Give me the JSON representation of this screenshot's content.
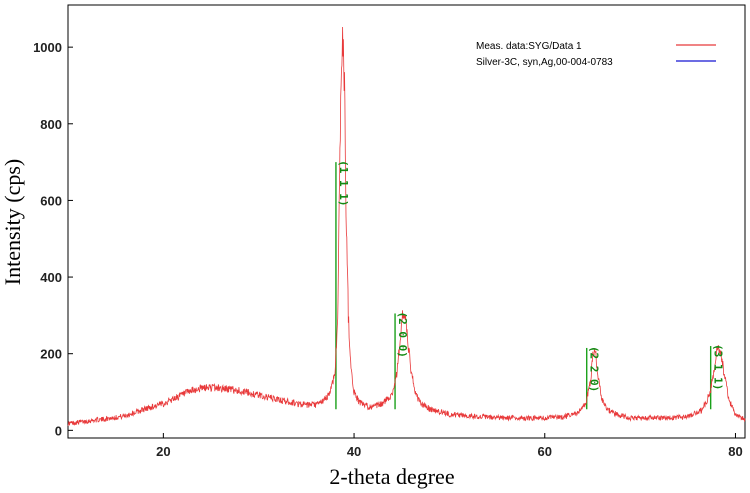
{
  "chart_data": {
    "type": "line",
    "title": "",
    "xlabel": "2-theta degree",
    "ylabel": "Intensity (cps)",
    "xlim": [
      10,
      81
    ],
    "ylim": [
      -20,
      1110
    ],
    "xticks": [
      20,
      40,
      60,
      80
    ],
    "yticks": [
      0,
      200,
      400,
      600,
      800,
      1000
    ],
    "grid": false,
    "legend_position": "top-right",
    "series": [
      {
        "name": "Meas. data:SYG/Data 1",
        "color": "#e8393a",
        "style": "noisy-line",
        "x": [
          10,
          12,
          14,
          16,
          18,
          20,
          21,
          22,
          23,
          24,
          25,
          26,
          27,
          28,
          30,
          32,
          34,
          35,
          36,
          37,
          37.5,
          38,
          38.3,
          38.5,
          38.7,
          38.85,
          39,
          39.15,
          39.4,
          39.7,
          40,
          40.5,
          41,
          42,
          43,
          44,
          44.5,
          44.8,
          45.1,
          45.3,
          45.6,
          46,
          46.5,
          47,
          48,
          50,
          52,
          55,
          58,
          60,
          62,
          63.5,
          64.3,
          64.8,
          65.1,
          65.3,
          65.6,
          66,
          66.5,
          67.5,
          69,
          72,
          75,
          76.5,
          77.3,
          77.8,
          78.1,
          78.4,
          78.8,
          79.3,
          80,
          81
        ],
        "y": [
          18,
          24,
          30,
          38,
          55,
          70,
          82,
          93,
          103,
          110,
          112,
          110,
          107,
          103,
          92,
          80,
          70,
          66,
          66,
          80,
          102,
          150,
          300,
          700,
          985,
          1020,
          900,
          600,
          300,
          150,
          100,
          76,
          66,
          60,
          70,
          95,
          150,
          230,
          300,
          305,
          240,
          150,
          92,
          70,
          55,
          42,
          38,
          33,
          32,
          32,
          35,
          45,
          70,
          130,
          210,
          205,
          140,
          80,
          55,
          42,
          32,
          32,
          35,
          52,
          95,
          160,
          215,
          210,
          150,
          80,
          40,
          28
        ]
      },
      {
        "name": "Silver-3C, syn,Ag,00-004-0783",
        "color": "#1414d2",
        "style": "line",
        "x": [],
        "y": []
      }
    ],
    "reference_peaks": {
      "color": "#1aa01a",
      "positions": [
        38.1,
        44.3,
        64.4,
        77.4
      ],
      "heights": [
        700,
        305,
        215,
        220
      ],
      "labels": [
        "(1 1 1)",
        "(2 0 0)",
        "(2 2 0)",
        "(3 1 1)"
      ]
    }
  }
}
